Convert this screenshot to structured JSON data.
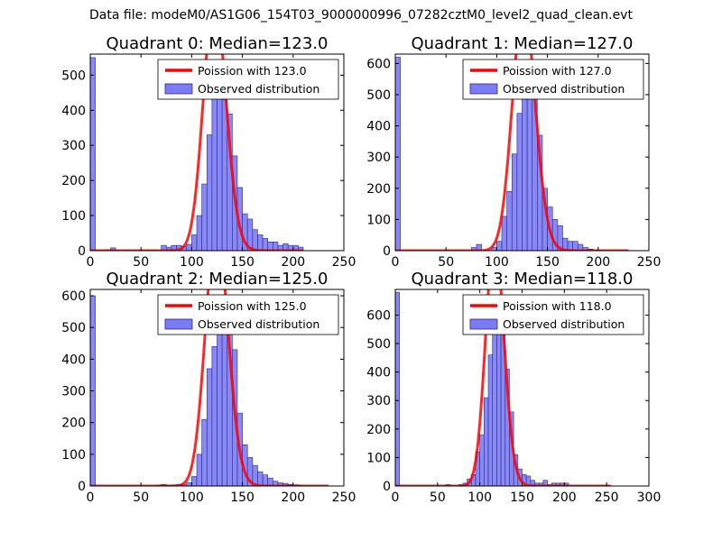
{
  "figure": {
    "suptitle": "Data file: modeM0/AS1G06_154T03_9000000996_07282cztM0_level2_quad_clean.evt"
  },
  "colors": {
    "poisson": "#ff0000",
    "bar_fill": "#7b7bf5",
    "bar_stroke": "#2a2a8a",
    "axis": "#000000"
  },
  "chart_data": [
    {
      "type": "bar",
      "title": "Quadrant 0: Median=123.0",
      "median": 123.0,
      "xlim": [
        0,
        250
      ],
      "ylim": [
        0,
        560
      ],
      "xticks": [
        0,
        50,
        100,
        150,
        200,
        250
      ],
      "yticks": [
        0,
        100,
        200,
        300,
        400,
        500
      ],
      "bin_width": 5,
      "bins_x": [
        0,
        15,
        20,
        70,
        75,
        80,
        85,
        90,
        95,
        100,
        105,
        110,
        115,
        120,
        125,
        130,
        135,
        140,
        145,
        150,
        155,
        160,
        165,
        170,
        175,
        180,
        185,
        190,
        195,
        200,
        205
      ],
      "bins_y": [
        550,
        3,
        8,
        15,
        10,
        15,
        15,
        12,
        18,
        45,
        100,
        190,
        330,
        450,
        520,
        430,
        390,
        270,
        180,
        105,
        90,
        60,
        45,
        35,
        25,
        25,
        15,
        20,
        15,
        15,
        10
      ],
      "poisson": {
        "lambda": 123.0,
        "x_range": [
          0,
          210
        ]
      },
      "legend": {
        "placement": "top-right",
        "line_label": "Poission with 123.0",
        "bar_label": "Observed distribution"
      }
    },
    {
      "type": "bar",
      "title": "Quadrant 1: Median=127.0",
      "median": 127.0,
      "xlim": [
        0,
        250
      ],
      "ylim": [
        0,
        630
      ],
      "xticks": [
        0,
        50,
        100,
        150,
        200,
        250
      ],
      "yticks": [
        0,
        100,
        200,
        300,
        400,
        500,
        600
      ],
      "bin_width": 5,
      "bins_x": [
        0,
        75,
        80,
        95,
        100,
        105,
        110,
        115,
        120,
        125,
        130,
        135,
        140,
        145,
        150,
        155,
        160,
        165,
        170,
        175,
        180,
        185,
        190
      ],
      "bins_y": [
        620,
        10,
        20,
        10,
        30,
        110,
        190,
        310,
        440,
        570,
        610,
        500,
        370,
        200,
        140,
        100,
        80,
        40,
        30,
        30,
        20,
        10,
        5
      ],
      "poisson": {
        "lambda": 127.0,
        "x_range": [
          0,
          230
        ]
      },
      "legend": {
        "placement": "top-right",
        "line_label": "Poission with 127.0",
        "bar_label": "Observed distribution"
      }
    },
    {
      "type": "bar",
      "title": "Quadrant 2: Median=125.0",
      "median": 125.0,
      "xlim": [
        0,
        250
      ],
      "ylim": [
        0,
        620
      ],
      "xticks": [
        0,
        50,
        100,
        150,
        200,
        250
      ],
      "yticks": [
        0,
        100,
        200,
        300,
        400,
        500,
        600
      ],
      "bin_width": 5,
      "bins_x": [
        0,
        65,
        70,
        75,
        80,
        85,
        90,
        95,
        100,
        105,
        110,
        115,
        120,
        125,
        130,
        135,
        140,
        145,
        150,
        155,
        160,
        165,
        170,
        175,
        180,
        185,
        190,
        195,
        200,
        205
      ],
      "bins_y": [
        600,
        3,
        5,
        3,
        3,
        5,
        5,
        10,
        30,
        100,
        210,
        370,
        440,
        550,
        600,
        530,
        430,
        230,
        130,
        90,
        65,
        45,
        35,
        25,
        15,
        10,
        8,
        5,
        4,
        3
      ],
      "poisson": {
        "lambda": 125.0,
        "x_range": [
          0,
          235
        ]
      },
      "legend": {
        "placement": "top-right",
        "line_label": "Poission with 125.0",
        "bar_label": "Observed distribution"
      }
    },
    {
      "type": "bar",
      "title": "Quadrant 3: Median=118.0",
      "median": 118.0,
      "xlim": [
        0,
        300
      ],
      "ylim": [
        0,
        690
      ],
      "xticks": [
        0,
        50,
        100,
        150,
        200,
        250,
        300
      ],
      "yticks": [
        0,
        100,
        200,
        300,
        400,
        500,
        600
      ],
      "bin_width": 5,
      "bins_x": [
        0,
        60,
        75,
        80,
        85,
        90,
        95,
        100,
        105,
        110,
        115,
        120,
        125,
        130,
        135,
        140,
        145,
        150,
        155,
        160,
        165,
        170,
        175,
        180,
        185,
        190,
        195,
        200
      ],
      "bins_y": [
        680,
        5,
        5,
        10,
        25,
        40,
        120,
        180,
        310,
        460,
        570,
        660,
        630,
        410,
        260,
        110,
        60,
        40,
        35,
        20,
        10,
        10,
        20,
        5,
        10,
        10,
        10,
        10
      ],
      "poisson": {
        "lambda": 118.0,
        "x_range": [
          0,
          255
        ]
      },
      "legend": {
        "placement": "top-right",
        "line_label": "Poission with 118.0",
        "bar_label": "Observed distribution"
      }
    }
  ]
}
